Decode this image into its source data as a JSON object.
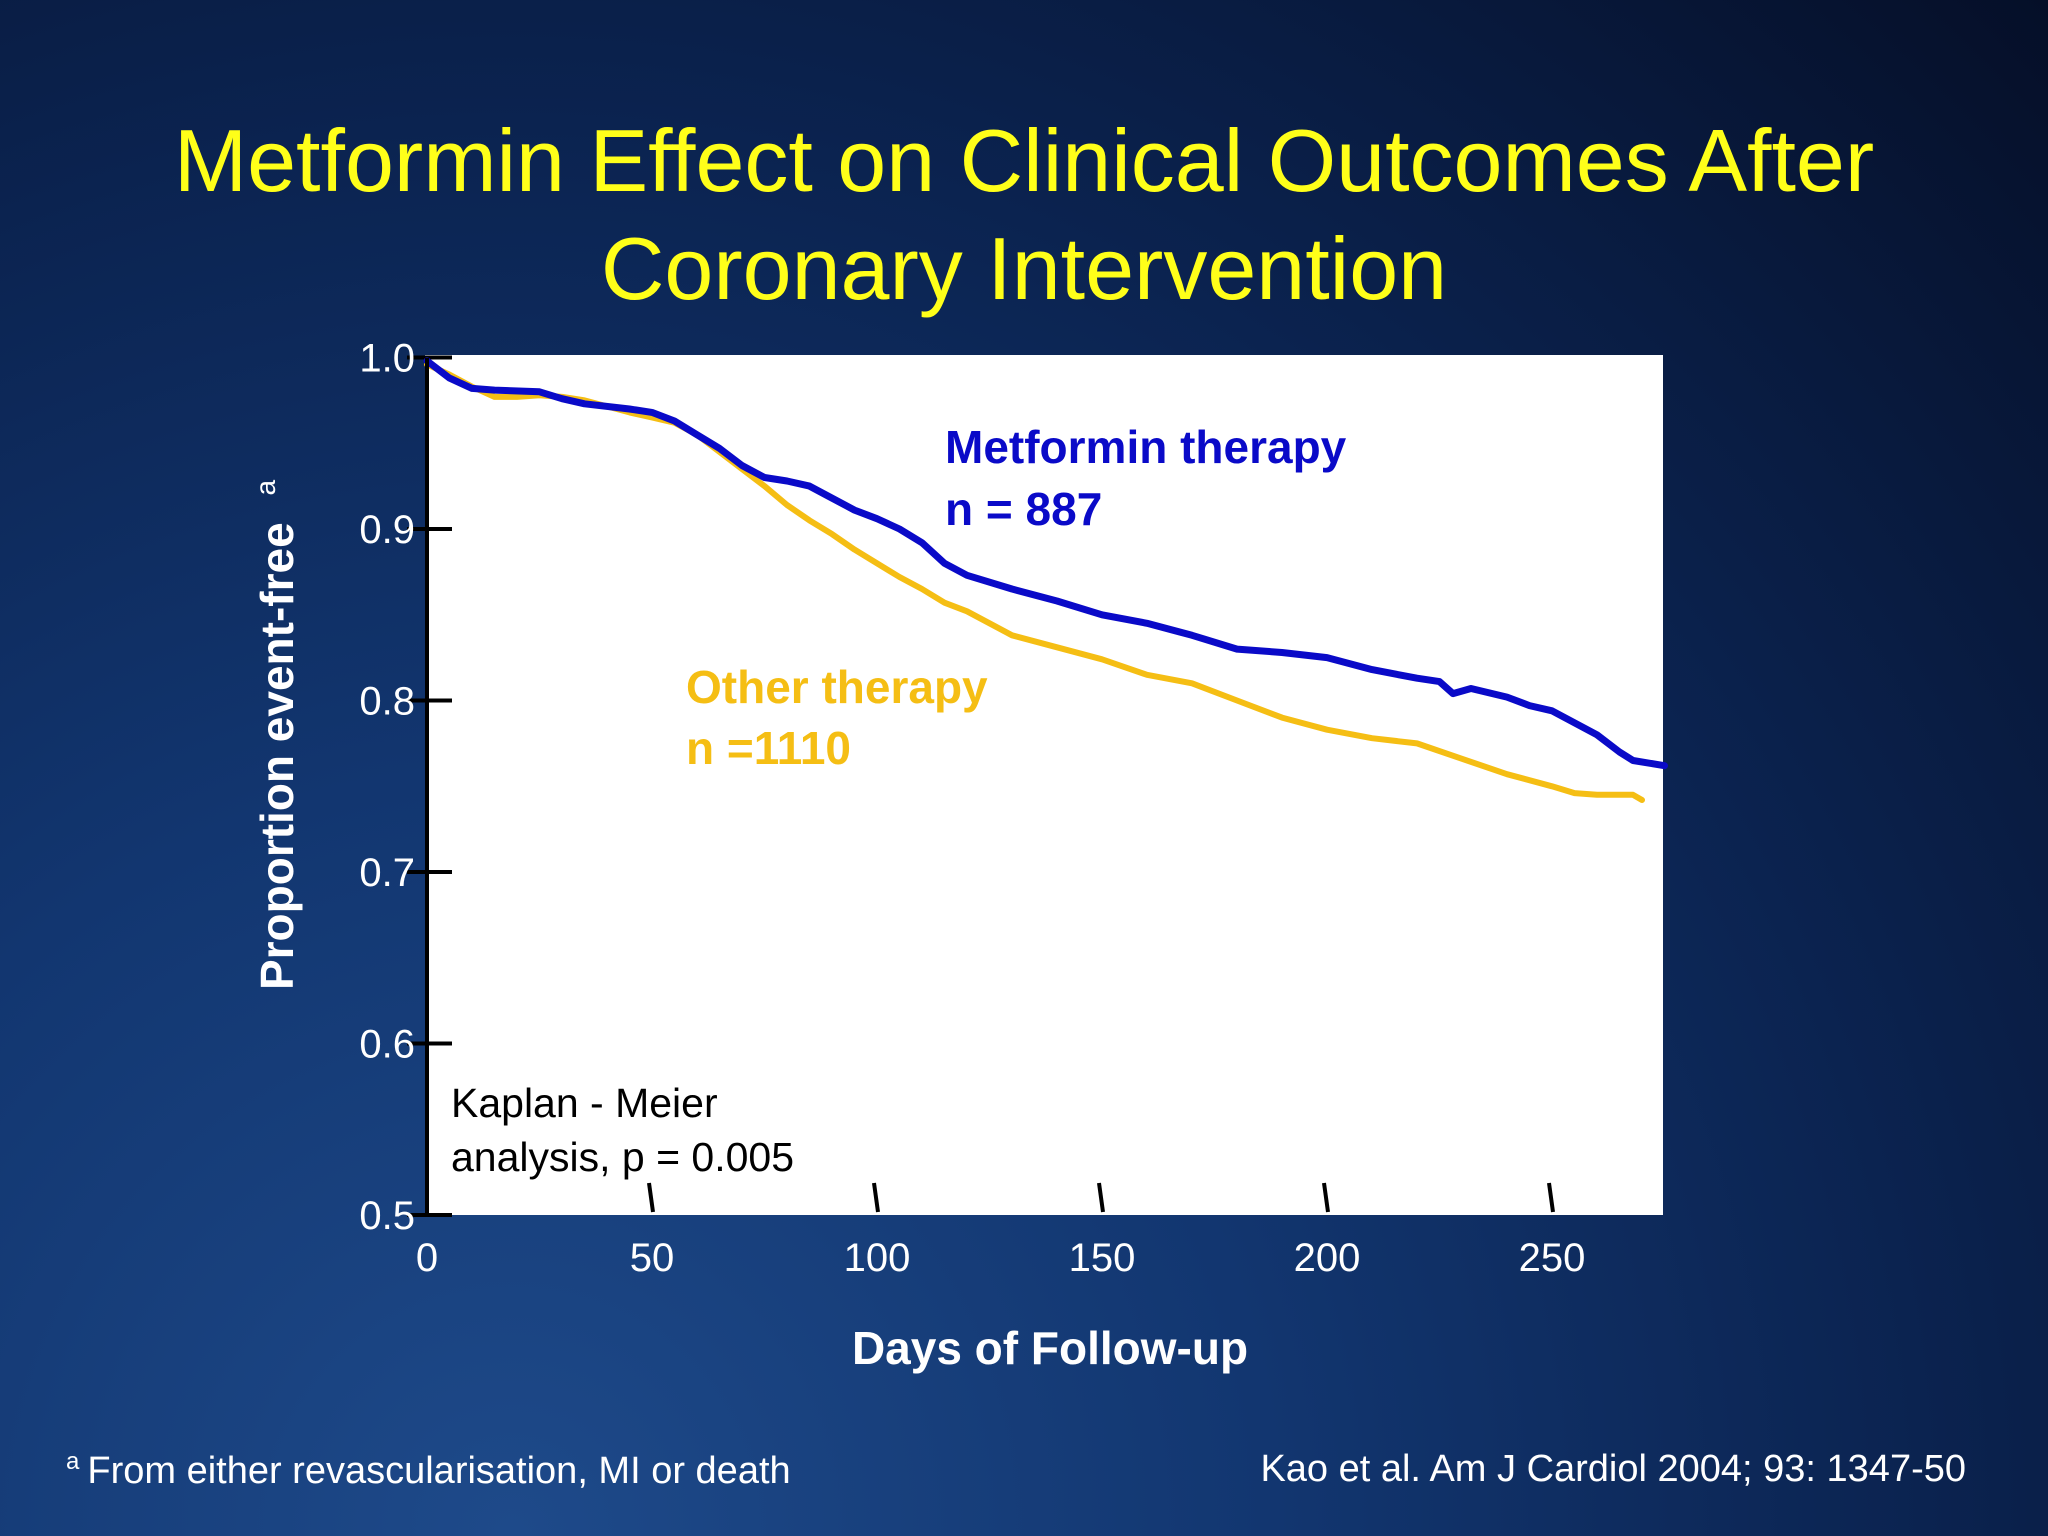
{
  "slide": {
    "title_line1": "Metformin Effect on Clinical Outcomes After",
    "title_line2": "Coronary Intervention",
    "footnote_marker": "a",
    "footnote": "From either revascularisation, MI or death",
    "citation": "Kao et al. Am J Cardiol 2004; 93: 1347-50"
  },
  "colors": {
    "title": "#ffff19",
    "metformin": "#0a0ac8",
    "other": "#f5be14",
    "plot_bg": "#ffffff"
  },
  "chart_data": {
    "type": "line",
    "title": "",
    "xlabel": "Days of Follow-up",
    "ylabel": "Proportion event-free",
    "ylabel_superscript": "a",
    "xlim": [
      0,
      275
    ],
    "ylim": [
      0.5,
      1.0
    ],
    "x_ticks": [
      0,
      50,
      100,
      150,
      200,
      250
    ],
    "y_ticks": [
      "0.5",
      "0.6",
      "0.7",
      "0.8",
      "0.9",
      "1.0"
    ],
    "grid": false,
    "annotation": {
      "line1": "Kaplan - Meier",
      "line2": "analysis, p = 0.005"
    },
    "series": [
      {
        "name": "Metformin therapy",
        "n_label": "n = 887",
        "color": "#0a0ac8",
        "x": [
          0,
          5,
          10,
          15,
          25,
          30,
          35,
          45,
          50,
          55,
          60,
          65,
          70,
          75,
          80,
          85,
          90,
          95,
          100,
          105,
          110,
          115,
          120,
          130,
          140,
          150,
          160,
          170,
          180,
          190,
          200,
          210,
          220,
          225,
          228,
          232,
          240,
          245,
          250,
          255,
          260,
          265,
          268,
          275
        ],
        "y": [
          0.998,
          0.988,
          0.982,
          0.981,
          0.98,
          0.976,
          0.973,
          0.97,
          0.968,
          0.963,
          0.955,
          0.947,
          0.937,
          0.93,
          0.928,
          0.925,
          0.918,
          0.911,
          0.906,
          0.9,
          0.892,
          0.88,
          0.873,
          0.865,
          0.858,
          0.85,
          0.845,
          0.838,
          0.83,
          0.828,
          0.825,
          0.818,
          0.813,
          0.811,
          0.804,
          0.807,
          0.802,
          0.797,
          0.794,
          0.787,
          0.78,
          0.77,
          0.765,
          0.762
        ]
      },
      {
        "name": "Other therapy",
        "n_label": "n =1110",
        "color": "#f5be14",
        "x": [
          0,
          5,
          10,
          15,
          20,
          25,
          30,
          35,
          45,
          50,
          55,
          60,
          65,
          70,
          75,
          80,
          85,
          90,
          95,
          100,
          105,
          110,
          115,
          120,
          130,
          140,
          150,
          160,
          170,
          180,
          190,
          200,
          210,
          220,
          230,
          240,
          250,
          255,
          260,
          265,
          268,
          270
        ],
        "y": [
          0.996,
          0.99,
          0.983,
          0.977,
          0.977,
          0.978,
          0.977,
          0.975,
          0.968,
          0.965,
          0.962,
          0.955,
          0.945,
          0.935,
          0.925,
          0.914,
          0.905,
          0.897,
          0.888,
          0.88,
          0.872,
          0.865,
          0.857,
          0.852,
          0.838,
          0.831,
          0.824,
          0.815,
          0.81,
          0.8,
          0.79,
          0.783,
          0.778,
          0.775,
          0.766,
          0.757,
          0.75,
          0.746,
          0.745,
          0.745,
          0.745,
          0.742
        ]
      }
    ]
  }
}
